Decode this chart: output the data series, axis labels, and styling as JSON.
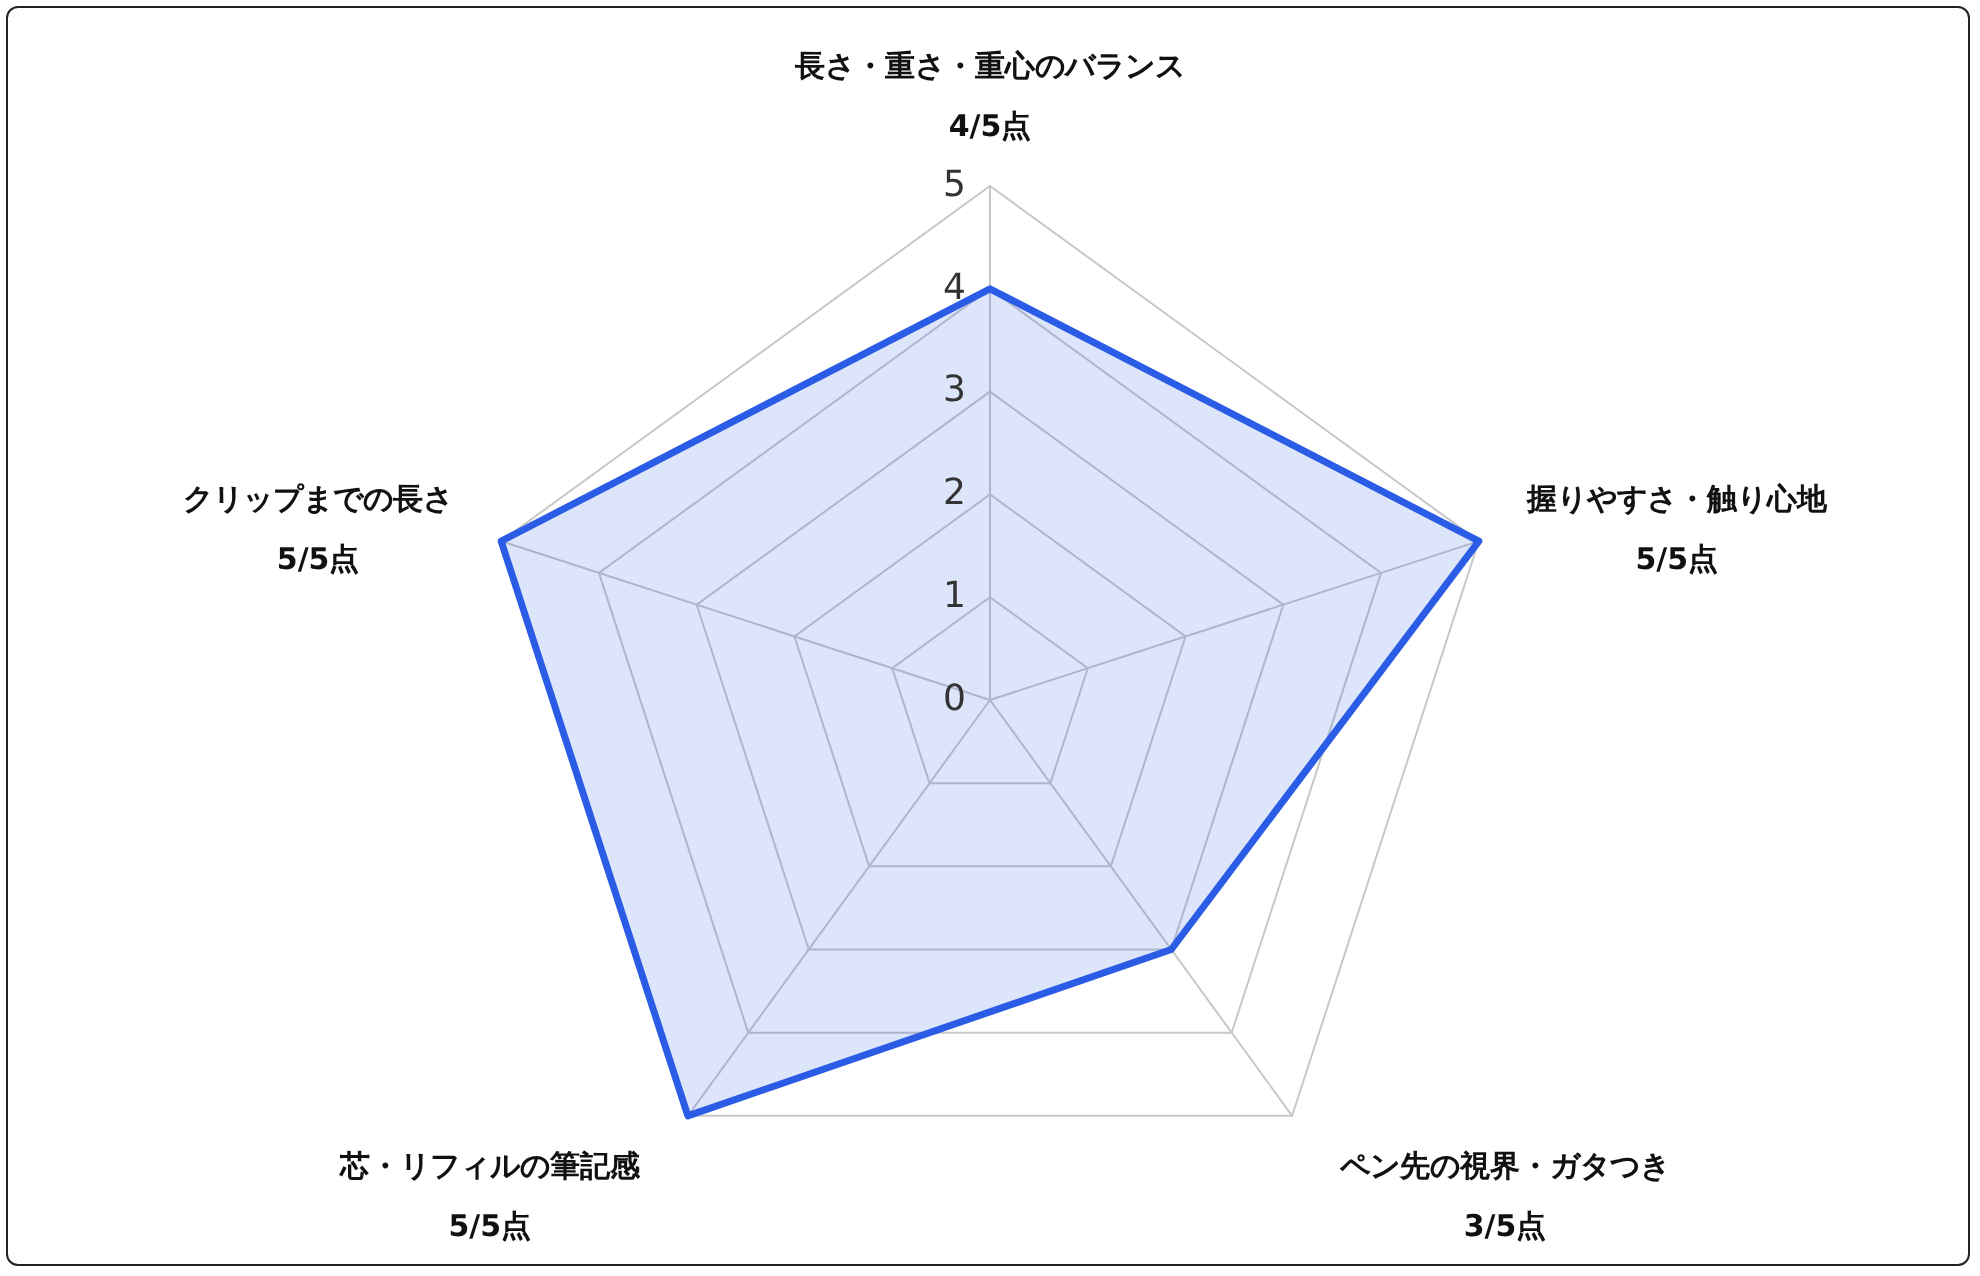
{
  "chart_data": {
    "type": "radar",
    "categories": [
      "長さ・重さ・重心のバランス\n4/5点",
      "握りやすさ・触り心地\n5/5点",
      "ペン先の視界・ガタつき\n3/5点",
      "芯・リフィルの筆記感\n5/5点",
      "クリップまでの長さ\n5/5点"
    ],
    "series": [
      {
        "color": "#2b5ce6",
        "values": [
          4,
          5,
          3,
          5,
          5
        ]
      }
    ],
    "ylim": [
      0,
      5
    ],
    "yticks": [
      0,
      1,
      2,
      3,
      4,
      5
    ],
    "grid": true
  }
}
